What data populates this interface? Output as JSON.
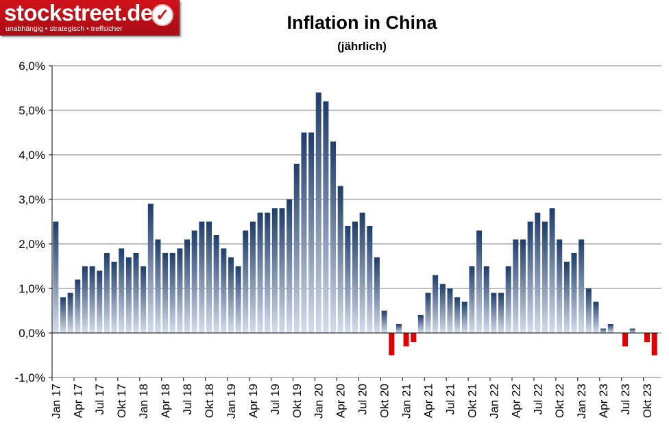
{
  "logo": {
    "name": "stockstreet.de",
    "tagline": "unabhängig • strategisch • treffsicher",
    "check_icon": "checkmark-icon"
  },
  "chart_data": {
    "type": "bar",
    "title": "Inflation in China",
    "subtitle": "(jährlich)",
    "xlabel": "",
    "ylabel": "",
    "ylim": [
      -1,
      6
    ],
    "yticks": [
      "-1,0%",
      "0,0%",
      "1,0%",
      "2,0%",
      "3,0%",
      "4,0%",
      "5,0%",
      "6,0%"
    ],
    "grid": true,
    "xtick_labels": [
      "Jan 17",
      "Apr 17",
      "Jul 17",
      "Okt 17",
      "Jan 18",
      "Apr 18",
      "Jul 18",
      "Okt 18",
      "Jan 19",
      "Apr 19",
      "Jul 19",
      "Okt 19",
      "Jan 20",
      "Apr 20",
      "Jul 20",
      "Okt 20",
      "Jan 21",
      "Apr 21",
      "Jul 21",
      "Okt 21",
      "Jan 22",
      "Apr 22",
      "Jul 22",
      "Okt 22",
      "Jan 23",
      "Apr 23",
      "Jul 23",
      "Okt 23"
    ],
    "colors": {
      "positive_top": "#1f3d6b",
      "positive_bottom": "#d4ddeb",
      "negative": "#e00000",
      "grid": "#7f7f7f"
    },
    "values": [
      2.5,
      0.8,
      0.9,
      1.2,
      1.5,
      1.5,
      1.4,
      1.8,
      1.6,
      1.9,
      1.7,
      1.8,
      1.5,
      2.9,
      2.1,
      1.8,
      1.8,
      1.9,
      2.1,
      2.3,
      2.5,
      2.5,
      2.2,
      1.9,
      1.7,
      1.5,
      2.3,
      2.5,
      2.7,
      2.7,
      2.8,
      2.8,
      3.0,
      3.8,
      4.5,
      4.5,
      5.4,
      5.2,
      4.3,
      3.3,
      2.4,
      2.5,
      2.7,
      2.4,
      1.7,
      0.5,
      -0.5,
      0.2,
      -0.3,
      -0.2,
      0.4,
      0.9,
      1.3,
      1.1,
      1.0,
      0.8,
      0.7,
      1.5,
      2.3,
      1.5,
      0.9,
      0.9,
      1.5,
      2.1,
      2.1,
      2.5,
      2.7,
      2.5,
      2.8,
      2.1,
      1.6,
      1.8,
      2.1,
      1.0,
      0.7,
      0.1,
      0.2,
      0.0,
      -0.3,
      0.1,
      0.0,
      -0.2,
      -0.5
    ]
  }
}
